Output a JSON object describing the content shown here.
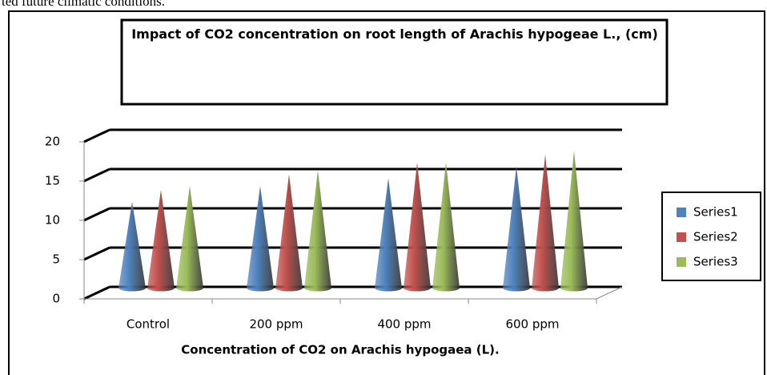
{
  "page_text": "ted future climatic conditions.",
  "chart_data": {
    "type": "cone3d",
    "title": "Impact of CO2 concentration on root length of Arachis hypogeae L., (cm)",
    "x_label": "Concentration of CO2 on Arachis hypogaea (L).",
    "categories": [
      "Control",
      "200 ppm",
      "400 ppm",
      "600 ppm"
    ],
    "series": [
      {
        "name": "Series1",
        "color": "#4f81bd",
        "values": [
          11,
          13,
          14,
          15.5
        ]
      },
      {
        "name": "Series2",
        "color": "#c0504d",
        "values": [
          12.5,
          14.5,
          16,
          17
        ]
      },
      {
        "name": "Series3",
        "color": "#9bbb59",
        "values": [
          13,
          15,
          16,
          17.5
        ]
      }
    ],
    "ylim": [
      0,
      20
    ],
    "yticks": [
      0,
      5,
      10,
      15,
      20
    ],
    "grid": true,
    "legend": "right"
  }
}
